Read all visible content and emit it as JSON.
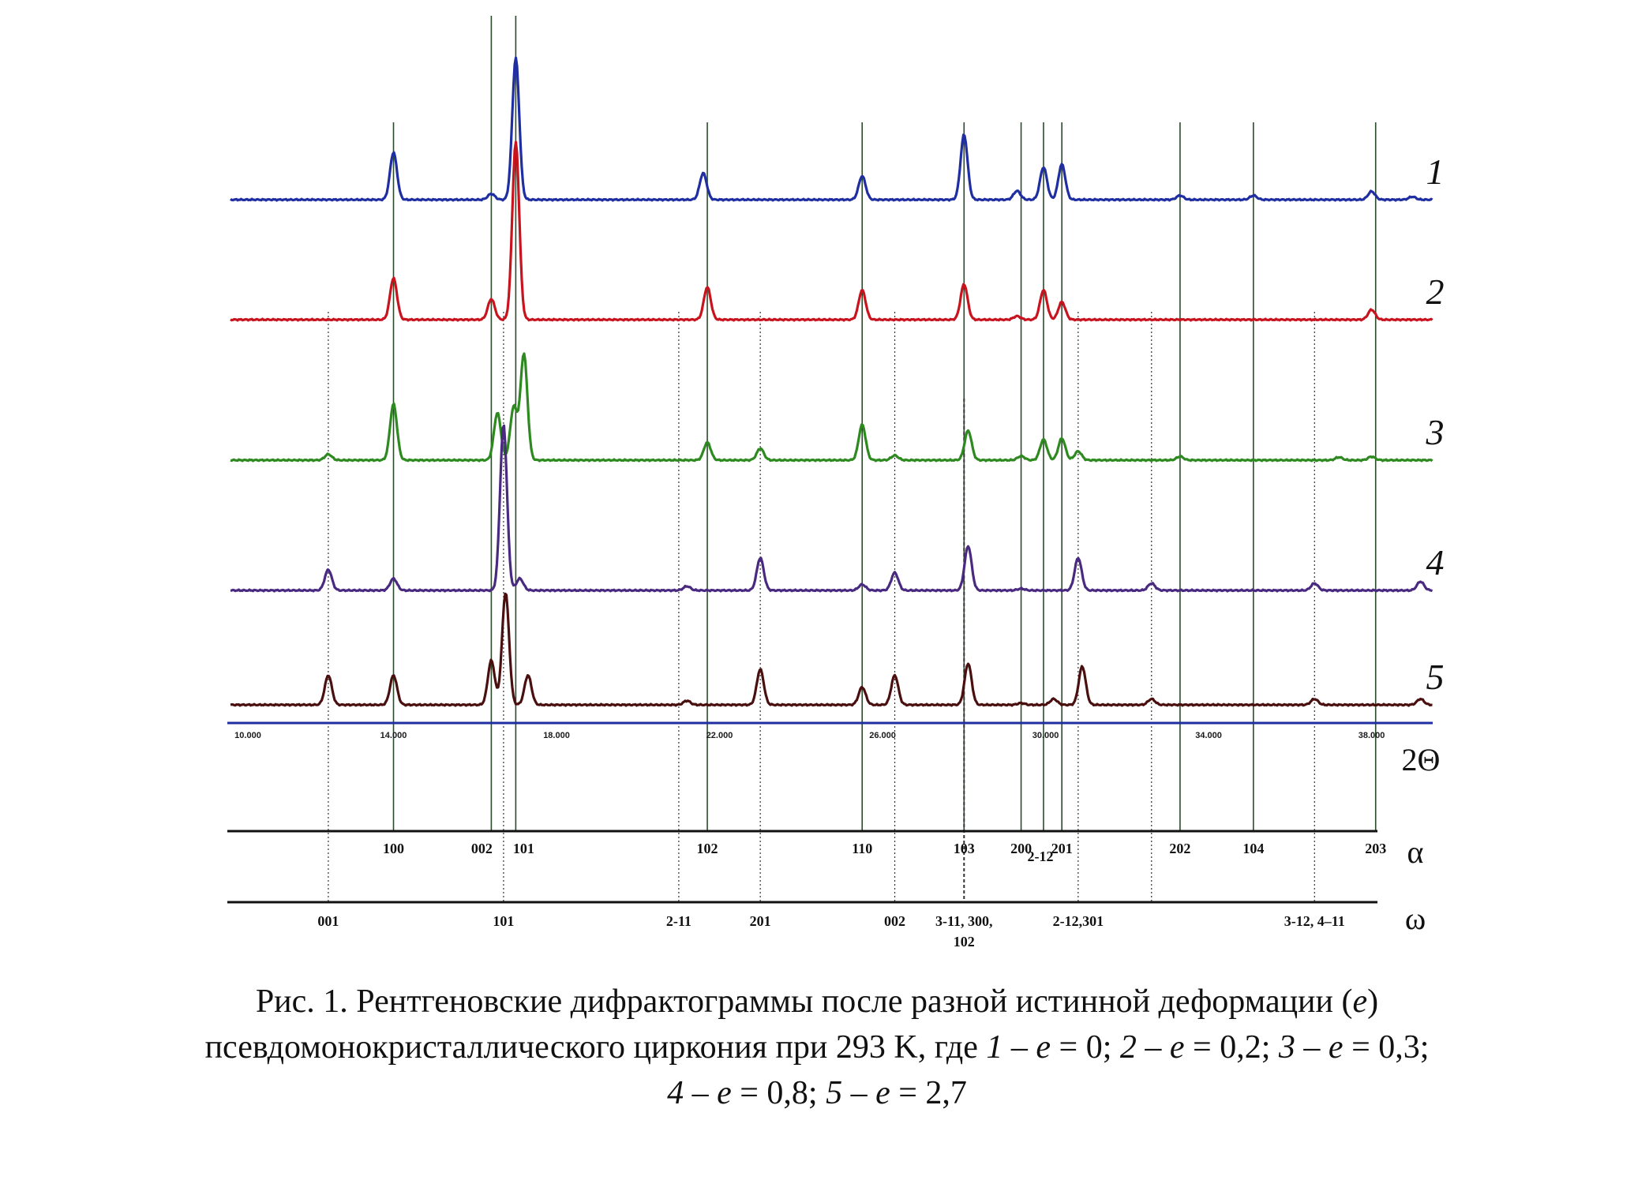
{
  "chart_data": {
    "type": "line",
    "x_axis": {
      "symbol": "2Θ",
      "range": [
        10.0,
        39.5
      ],
      "ticks": [
        "10.000",
        "14.000",
        "18.000",
        "22.000",
        "26.000",
        "30.000",
        "34.000",
        "38.000"
      ],
      "tick_values": [
        10,
        14,
        18,
        22,
        26,
        30,
        34,
        38
      ]
    },
    "series": [
      {
        "name": "1",
        "color": "#1f2ea0",
        "peaks": [
          [
            14.0,
            0.8
          ],
          [
            16.4,
            0.1
          ],
          [
            17.0,
            2.4
          ],
          [
            21.6,
            0.45
          ],
          [
            25.5,
            0.4
          ],
          [
            28.0,
            1.1
          ],
          [
            29.3,
            0.15
          ],
          [
            29.95,
            0.55
          ],
          [
            30.4,
            0.6
          ],
          [
            33.3,
            0.07
          ],
          [
            35.1,
            0.07
          ],
          [
            38.0,
            0.14
          ],
          [
            39.0,
            0.05
          ]
        ]
      },
      {
        "name": "2",
        "color": "#c8141e",
        "peaks": [
          [
            14.0,
            0.7
          ],
          [
            16.4,
            0.35
          ],
          [
            17.0,
            3.0
          ],
          [
            21.7,
            0.55
          ],
          [
            25.5,
            0.5
          ],
          [
            28.0,
            0.6
          ],
          [
            29.3,
            0.06
          ],
          [
            29.95,
            0.5
          ],
          [
            30.4,
            0.3
          ],
          [
            38.0,
            0.17
          ]
        ]
      },
      {
        "name": "3",
        "color": "#2e8a20",
        "peaks": [
          [
            12.4,
            0.1
          ],
          [
            14.0,
            0.95
          ],
          [
            16.55,
            0.8
          ],
          [
            16.95,
            0.9
          ],
          [
            17.2,
            1.8
          ],
          [
            21.7,
            0.3
          ],
          [
            23.0,
            0.2
          ],
          [
            25.5,
            0.6
          ],
          [
            26.3,
            0.08
          ],
          [
            28.1,
            0.5
          ],
          [
            29.4,
            0.07
          ],
          [
            29.95,
            0.35
          ],
          [
            30.4,
            0.37
          ],
          [
            30.8,
            0.15
          ],
          [
            33.3,
            0.06
          ],
          [
            37.2,
            0.05
          ],
          [
            38.0,
            0.06
          ]
        ]
      },
      {
        "name": "4",
        "color": "#4a2a80",
        "peaks": [
          [
            12.4,
            0.35
          ],
          [
            14.0,
            0.2
          ],
          [
            16.7,
            2.8
          ],
          [
            17.1,
            0.2
          ],
          [
            21.2,
            0.07
          ],
          [
            23.0,
            0.55
          ],
          [
            25.5,
            0.1
          ],
          [
            26.3,
            0.3
          ],
          [
            28.1,
            0.75
          ],
          [
            29.4,
            0.03
          ],
          [
            30.8,
            0.55
          ],
          [
            32.6,
            0.12
          ],
          [
            36.6,
            0.12
          ],
          [
            39.2,
            0.15
          ]
        ]
      },
      {
        "name": "5",
        "color": "#4a1010",
        "peaks": [
          [
            12.4,
            0.5
          ],
          [
            14.0,
            0.5
          ],
          [
            16.4,
            0.75
          ],
          [
            16.75,
            1.9
          ],
          [
            17.3,
            0.5
          ],
          [
            21.2,
            0.07
          ],
          [
            23.0,
            0.6
          ],
          [
            25.5,
            0.3
          ],
          [
            26.3,
            0.5
          ],
          [
            28.1,
            0.7
          ],
          [
            29.4,
            0.03
          ],
          [
            30.2,
            0.1
          ],
          [
            30.9,
            0.65
          ],
          [
            32.6,
            0.1
          ],
          [
            36.6,
            0.1
          ],
          [
            39.2,
            0.1
          ]
        ]
      }
    ],
    "alpha_reflections": [
      {
        "label": "100",
        "x": 14.0
      },
      {
        "label": "002",
        "x": 16.4
      },
      {
        "label": "101",
        "x": 17.0
      },
      {
        "label": "102",
        "x": 21.7
      },
      {
        "label": "110",
        "x": 25.5
      },
      {
        "label": "103",
        "x": 28.0
      },
      {
        "label": "200",
        "x": 29.4
      },
      {
        "label": "2-12",
        "x": 29.95
      },
      {
        "label": "201",
        "x": 30.4
      },
      {
        "label": "202",
        "x": 33.3
      },
      {
        "label": "104",
        "x": 35.1
      },
      {
        "label": "203",
        "x": 38.1
      }
    ],
    "omega_reflections": [
      {
        "label": "001",
        "x": 12.4
      },
      {
        "label": "101",
        "x": 16.7
      },
      {
        "label": "2-11",
        "x": 21.0
      },
      {
        "label": "201",
        "x": 23.0
      },
      {
        "label": "002",
        "x": 26.3
      },
      {
        "label": "3-11, 300,",
        "label2": "102",
        "x": 28.0
      },
      {
        "label": "2-12,301",
        "x": 30.8
      },
      {
        "label": "",
        "x": 32.6
      },
      {
        "label": "3-12, 4–11",
        "x": 36.6
      }
    ],
    "phase_symbols": {
      "alpha": "α",
      "omega": "ω"
    }
  },
  "caption": {
    "line1": "Рис. 1. Рентгеновские дифрактограммы после разной истинной деформации (",
    "line1_var": "e",
    "line1_end": ")",
    "line2_a": "псевдомонокристаллического циркония при 293 K, где ",
    "item1_n": "1",
    "item1_v": " = 0; ",
    "item2_n": "2",
    "item2_v": " = 0,2; ",
    "item3_n": "3",
    "item3_v": " = 0,3;",
    "item4_n": "4",
    "item4_v": " = 0,8; ",
    "item5_n": "5",
    "item5_v": " = 2,7",
    "dash": " – ",
    "var": "e"
  }
}
